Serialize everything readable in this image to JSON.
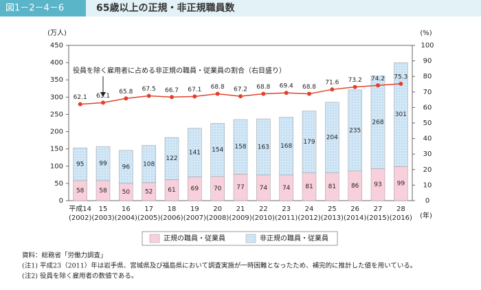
{
  "chart_data": {
    "type": "bar",
    "stacked": true,
    "figure_label": "図1－2－4－6",
    "title": "65歳以上の正規・非正規職員数",
    "y_unit": "(万人)",
    "y2_unit": "(%)",
    "x_unit": "(年)",
    "annotation": "役員を除く雇用者に占める非正規の職員・従業員の割合（右目盛り）",
    "categories": [
      [
        "平成14",
        "(2002)"
      ],
      [
        "15",
        "(2003)"
      ],
      [
        "16",
        "(2004)"
      ],
      [
        "17",
        "(2005)"
      ],
      [
        "18",
        "(2006)"
      ],
      [
        "19",
        "(2007)"
      ],
      [
        "20",
        "(2008)"
      ],
      [
        "21",
        "(2009)"
      ],
      [
        "22",
        "(2010)"
      ],
      [
        "23",
        "(2011)"
      ],
      [
        "24",
        "(2012)"
      ],
      [
        "25",
        "(2013)"
      ],
      [
        "26",
        "(2014)"
      ],
      [
        "27",
        "(2015)"
      ],
      [
        "28",
        "(2016)"
      ]
    ],
    "series": [
      {
        "name": "正規の職員・従業員",
        "color": "#f8d0dc",
        "values": [
          58,
          58,
          50,
          52,
          61,
          69,
          70,
          77,
          74,
          74,
          81,
          81,
          86,
          93,
          99
        ]
      },
      {
        "name": "非正規の職員・従業員",
        "color": "#d3e8f7",
        "values": [
          95,
          99,
          96,
          108,
          122,
          141,
          154,
          158,
          163,
          168,
          179,
          204,
          235,
          268,
          301
        ]
      },
      {
        "type": "line",
        "axis": "y2",
        "color": "#e3402b",
        "values": [
          62.1,
          63.1,
          65.8,
          67.5,
          66.7,
          67.1,
          68.8,
          67.2,
          68.8,
          69.4,
          68.8,
          71.6,
          73.2,
          74.2,
          75.3
        ]
      }
    ],
    "ylim": [
      0,
      450
    ],
    "yticks": [
      0,
      50,
      100,
      150,
      200,
      250,
      300,
      350,
      400,
      450
    ],
    "y2lim": [
      0,
      100
    ],
    "y2ticks": [
      0,
      10,
      20,
      30,
      40,
      50,
      60,
      70,
      80,
      90,
      100
    ],
    "notes": [
      "資料：総務省「労働力調査」",
      "(注1) 平成23（2011）年は岩手県、宮城県及び福島県において調査実施が一時困難となったため、補完的に推計した値を用いている。",
      "(注2) 役員を除く雇用者の数値である。"
    ]
  }
}
